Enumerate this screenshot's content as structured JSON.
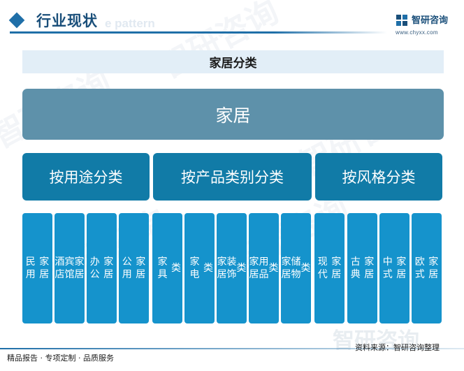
{
  "header": {
    "title": "行业现状",
    "ghost_text": "e pattern",
    "logo_name": "智研咨询",
    "logo_url": "www.chyxx.com"
  },
  "diagram": {
    "banner": "家居分类",
    "root": "家居",
    "categories": [
      {
        "label": "按用途分类",
        "items": [
          "民用\n家居",
          "酒店\n宾馆\n家居",
          "办公\n家居",
          "公用\n家居"
        ]
      },
      {
        "label": "按产品类别分类",
        "items": [
          "家具\n类",
          "家电\n类",
          "家居\n装饰\n类",
          "家居\n用品\n类",
          "家居\n储物\n类"
        ]
      },
      {
        "label": "按风格分类",
        "items": [
          "现代\n家居",
          "古典\n家居",
          "中式\n家居",
          "欧式\n家居"
        ]
      }
    ],
    "colors": {
      "banner": "#e2eef7",
      "root": "#5e91aa",
      "category": "#117ba7",
      "leaf": "#1593cc"
    }
  },
  "footer": {
    "left": "精品报告 · 专项定制 · 品质服务",
    "source": "资料来源：智研咨询整理",
    "watermark": "智研咨询"
  }
}
